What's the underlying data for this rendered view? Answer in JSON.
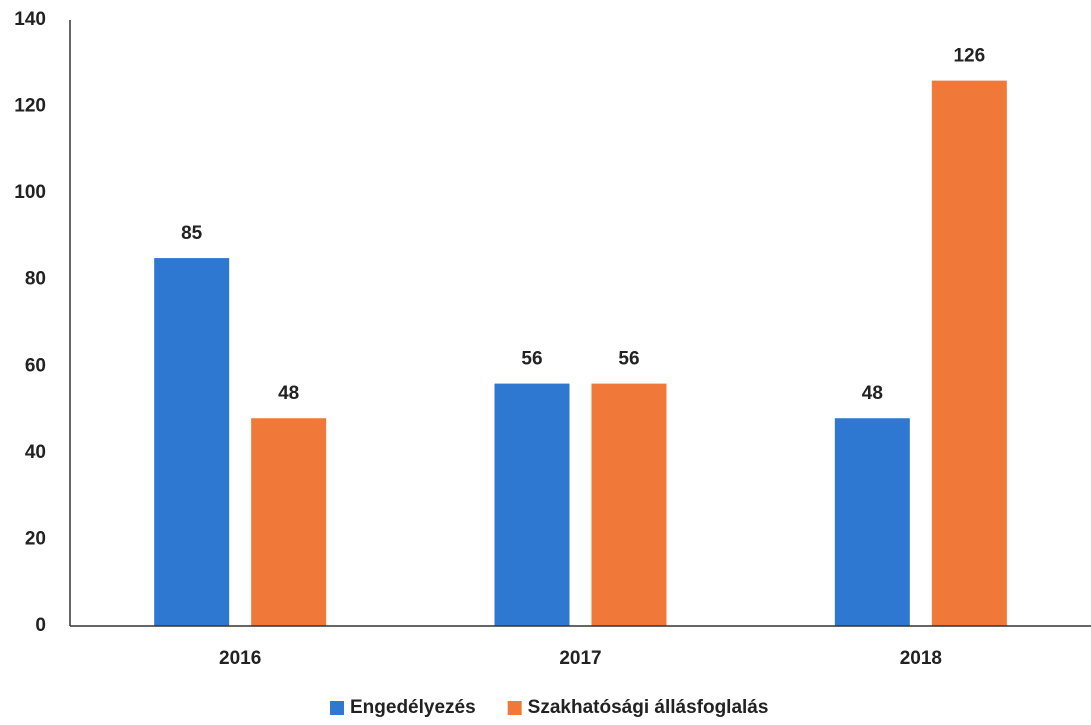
{
  "chart_data": {
    "type": "bar",
    "categories": [
      "2016",
      "2017",
      "2018"
    ],
    "series": [
      {
        "name": "Engedélyezés",
        "color": "#2f78d2",
        "values": [
          85,
          56,
          48
        ]
      },
      {
        "name": "Szakhatósági állásfoglalás",
        "color": "#f0793a",
        "values": [
          48,
          56,
          126
        ]
      }
    ],
    "ylim": [
      0,
      140
    ],
    "yticks": [
      0,
      20,
      40,
      60,
      80,
      100,
      120,
      140
    ],
    "grid": false,
    "legend": "bottom"
  }
}
